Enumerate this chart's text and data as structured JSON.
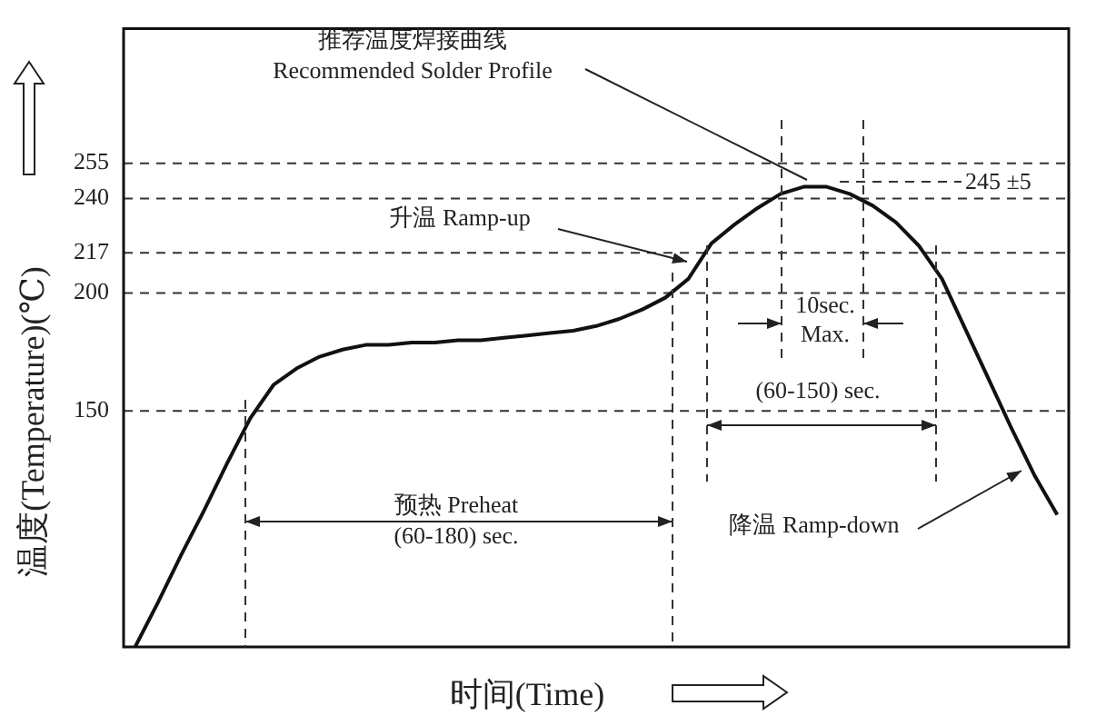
{
  "chart_data": {
    "type": "line",
    "ylabel": "温度(Temperature)(℃)",
    "xlabel": "时间(Time)",
    "categories": [
      null,
      null,
      null,
      null,
      null,
      null,
      null,
      null,
      null,
      null,
      null,
      null,
      null,
      null,
      null,
      null,
      null,
      null,
      null,
      null,
      null,
      null,
      null,
      null,
      null,
      null,
      null,
      null,
      null,
      null,
      null,
      null,
      null,
      null,
      null,
      null,
      null,
      null,
      null,
      null,
      null
    ],
    "values": [
      50,
      69,
      89,
      108,
      128,
      147,
      161,
      168,
      173,
      176,
      178,
      178,
      179,
      179,
      180,
      180,
      181,
      182,
      183,
      184,
      186,
      189,
      193,
      198,
      206,
      221,
      229,
      236,
      242,
      245,
      245,
      242,
      237,
      230,
      220,
      206,
      185,
      164,
      143,
      123,
      106
    ],
    "color": "#111111",
    "line_style": "solid",
    "marker": "none",
    "ylim": [
      50,
      312
    ],
    "yticks": [
      150,
      200,
      217,
      240,
      255
    ],
    "tick_labels": "y",
    "grid": false,
    "ref_lines": [
      {
        "axis": "y",
        "value": 150,
        "color": "#333333",
        "line_style": "dashed"
      },
      {
        "axis": "y",
        "value": 200,
        "color": "#333333",
        "line_style": "dashed"
      },
      {
        "axis": "y",
        "value": 217,
        "color": "#333333",
        "line_style": "dashed"
      },
      {
        "axis": "y",
        "value": 240,
        "color": "#333333",
        "line_style": "dashed"
      },
      {
        "axis": "y",
        "value": 255,
        "color": "#333333",
        "line_style": "dashed"
      }
    ],
    "annotations": [
      "推荐温度焊接曲线",
      "Recommended Solder Profile",
      "升温 Ramp-up",
      "预热 Preheat",
      "(60-180) sec.",
      "10sec.",
      "Max.",
      "(60-150) sec.",
      "降温 Ramp-down",
      "245 ±5"
    ]
  }
}
